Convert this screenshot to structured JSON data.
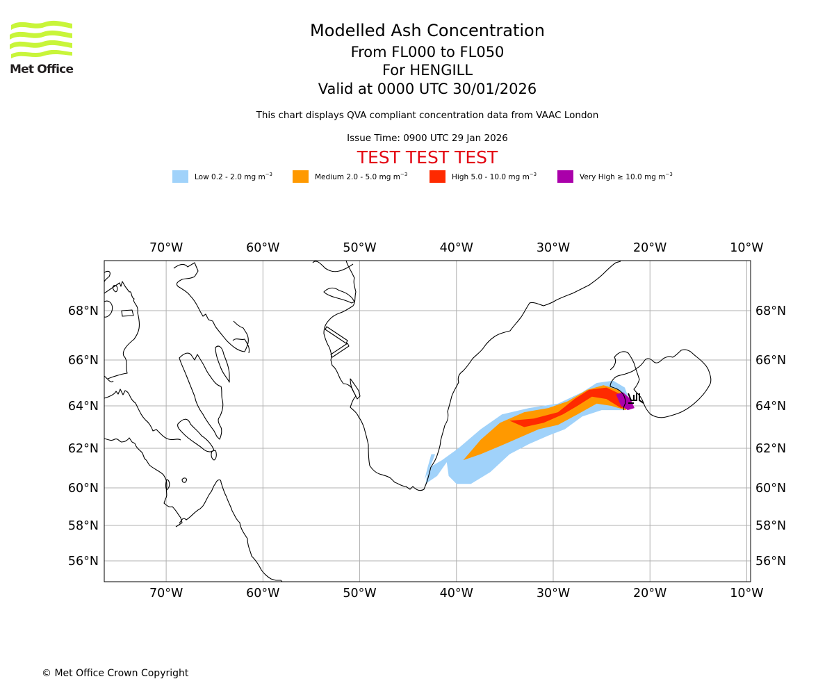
{
  "header": {
    "logo_text": "Met Office",
    "logo_color": "#c8f53a",
    "title": "Modelled Ash Concentration",
    "flight_levels": "From FL000 to FL050",
    "volcano": "For HENGILL",
    "valid_time": "Valid at 0000 UTC 30/01/2026",
    "description": "This chart displays QVA compliant concentration data from VAAC London",
    "issue_time": "Issue Time: 0900 UTC 29 Jan 2026",
    "test_banner": "TEST TEST TEST",
    "test_banner_color": "#e30613"
  },
  "legend": [
    {
      "name": "Low",
      "label": "Low 0.2 - 2.0 mg m",
      "unit_exp": "−3",
      "range": [
        0.2,
        2.0
      ],
      "color": "#a0d2fa"
    },
    {
      "name": "Medium",
      "label": "Medium 2.0 - 5.0 mg m",
      "unit_exp": "−3",
      "range": [
        2.0,
        5.0
      ],
      "color": "#ff9900"
    },
    {
      "name": "High",
      "label": "High 5.0 - 10.0 mg m",
      "unit_exp": "−3",
      "range": [
        5.0,
        10.0
      ],
      "color": "#ff2a00"
    },
    {
      "name": "Very High",
      "label": "Very High  ≥  10.0 mg m",
      "unit_exp": "−3",
      "range": [
        10.0,
        null
      ],
      "color": "#aa00aa"
    }
  ],
  "map": {
    "projection": "plate-carree (latitude scaled)",
    "lon_range": [
      -76.4,
      -9.6
    ],
    "lat_range": [
      55,
      70.2
    ],
    "lon_ticks": [
      {
        "value": -70,
        "label": "70°W"
      },
      {
        "value": -60,
        "label": "60°W"
      },
      {
        "value": -50,
        "label": "50°W"
      },
      {
        "value": -40,
        "label": "40°W"
      },
      {
        "value": -30,
        "label": "30°W"
      },
      {
        "value": -20,
        "label": "20°W"
      },
      {
        "value": -10,
        "label": "10°W"
      }
    ],
    "lat_ticks": [
      {
        "value": 68,
        "label": "68°N"
      },
      {
        "value": 66,
        "label": "66°N"
      },
      {
        "value": 64,
        "label": "64°N"
      },
      {
        "value": 62,
        "label": "62°N"
      },
      {
        "value": 60,
        "label": "60°N"
      },
      {
        "value": 58,
        "label": "58°N"
      },
      {
        "value": 56,
        "label": "56°N"
      }
    ],
    "gridlines": true,
    "grid_color": "#b0b0b0",
    "volcano_location": {
      "name": "HENGILL",
      "lon": -21.3,
      "lat": 64.1
    },
    "ash_plume": {
      "low": [
        [
          -43.2,
          60.2
        ],
        [
          -42.9,
          61.0
        ],
        [
          -41.5,
          61.4
        ],
        [
          -39.8,
          62.0
        ],
        [
          -37.5,
          62.9
        ],
        [
          -35.3,
          63.6
        ],
        [
          -32.5,
          63.9
        ],
        [
          -29.5,
          64.1
        ],
        [
          -27.0,
          64.6
        ],
        [
          -25.5,
          65.0
        ],
        [
          -23.8,
          65.1
        ],
        [
          -22.6,
          64.8
        ],
        [
          -22.1,
          64.2
        ],
        [
          -22.7,
          63.8
        ],
        [
          -25.0,
          63.8
        ],
        [
          -27.0,
          63.5
        ],
        [
          -28.8,
          62.9
        ],
        [
          -30.5,
          62.6
        ],
        [
          -32.5,
          62.2
        ],
        [
          -34.5,
          61.7
        ],
        [
          -36.5,
          60.8
        ],
        [
          -38.5,
          60.2
        ],
        [
          -40.0,
          60.2
        ],
        [
          -40.8,
          60.6
        ],
        [
          -41.0,
          61.3
        ],
        [
          -42.0,
          60.6
        ]
      ],
      "medium": [
        [
          -39.3,
          61.4
        ],
        [
          -37.5,
          62.4
        ],
        [
          -35.5,
          63.2
        ],
        [
          -33.0,
          63.7
        ],
        [
          -30.5,
          63.9
        ],
        [
          -28.5,
          64.2
        ],
        [
          -26.5,
          64.7
        ],
        [
          -24.8,
          64.9
        ],
        [
          -23.3,
          64.7
        ],
        [
          -22.0,
          64.2
        ],
        [
          -22.5,
          63.8
        ],
        [
          -24.0,
          64.0
        ],
        [
          -25.5,
          64.1
        ],
        [
          -27.5,
          63.6
        ],
        [
          -29.5,
          63.1
        ],
        [
          -31.5,
          62.9
        ],
        [
          -33.5,
          62.5
        ],
        [
          -35.5,
          62.1
        ],
        [
          -37.5,
          61.7
        ]
      ],
      "high": [
        [
          -34.5,
          63.3
        ],
        [
          -32.0,
          63.4
        ],
        [
          -29.5,
          63.7
        ],
        [
          -27.8,
          64.3
        ],
        [
          -26.3,
          64.7
        ],
        [
          -24.5,
          64.8
        ],
        [
          -23.0,
          64.5
        ],
        [
          -22.0,
          64.0
        ],
        [
          -23.0,
          63.9
        ],
        [
          -24.5,
          64.3
        ],
        [
          -26.0,
          64.4
        ],
        [
          -27.5,
          64.0
        ],
        [
          -29.0,
          63.6
        ],
        [
          -31.0,
          63.2
        ],
        [
          -33.0,
          63.0
        ]
      ],
      "very_high": [
        [
          -23.5,
          64.5
        ],
        [
          -22.8,
          64.6
        ],
        [
          -22.0,
          64.3
        ],
        [
          -21.6,
          63.9
        ],
        [
          -22.3,
          63.8
        ],
        [
          -23.0,
          64.0
        ]
      ]
    }
  },
  "footer": {
    "copyright": "© Met Office Crown Copyright"
  }
}
